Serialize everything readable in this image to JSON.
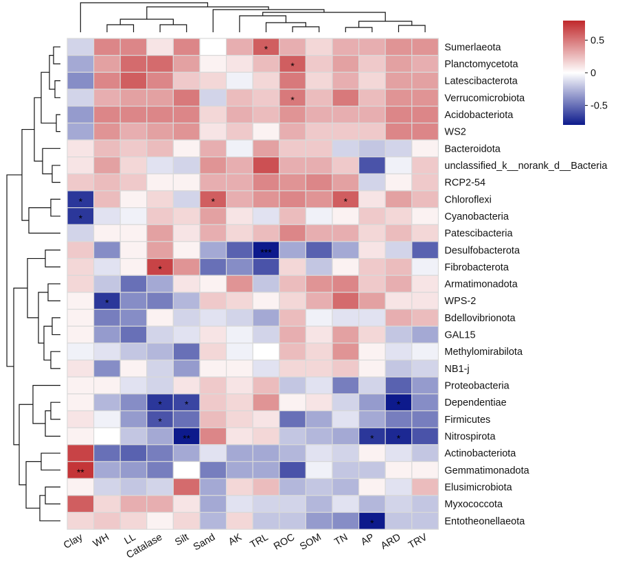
{
  "chart_data": {
    "type": "heatmap",
    "title": "",
    "columns": [
      "Clay",
      "WH",
      "LL",
      "Catalase",
      "Silt",
      "Sand",
      "AK",
      "TRL",
      "ROC",
      "SOM",
      "TN",
      "AP",
      "ARD",
      "TRV"
    ],
    "rows": [
      "Sumerlaeota",
      "Planctomycetota",
      "Latescibacterota",
      "Verrucomicrobiota",
      "Acidobacteriota",
      "WS2",
      "Bacteroidota",
      "unclassified_k__norank_d__Bacteria",
      "RCP2-54",
      "Chloroflexi",
      "Cyanobacteria",
      "Patescibacteria",
      "Desulfobacterota",
      "Fibrobacterota",
      "Armatimonadota",
      "WPS-2",
      "Bdellovibrionota",
      "GAL15",
      "Methylomirabilota",
      "NB1-j",
      "Proteobacteria",
      "Dependentiae",
      "Firmicutes",
      "Nitrospirota",
      "Actinobacteriota",
      "Gemmatimonadota",
      "Elusimicrobiota",
      "Myxococcota",
      "Entotheonellaeota"
    ],
    "values": [
      [
        -0.15,
        0.45,
        0.45,
        0.1,
        0.45,
        0.0,
        0.3,
        0.6,
        0.3,
        0.15,
        0.3,
        0.3,
        0.4,
        0.4
      ],
      [
        -0.3,
        0.35,
        0.55,
        0.55,
        0.35,
        0.05,
        0.1,
        0.25,
        0.6,
        0.2,
        0.35,
        0.2,
        0.35,
        0.3
      ],
      [
        -0.4,
        0.45,
        0.6,
        0.45,
        0.2,
        0.15,
        -0.05,
        0.15,
        0.5,
        0.15,
        0.3,
        0.15,
        0.35,
        0.35
      ],
      [
        -0.15,
        0.3,
        0.35,
        0.35,
        0.5,
        -0.15,
        0.25,
        0.2,
        0.5,
        0.25,
        0.5,
        0.25,
        0.4,
        0.4
      ],
      [
        -0.35,
        0.45,
        0.45,
        0.45,
        0.45,
        0.15,
        0.3,
        0.25,
        0.4,
        0.3,
        0.3,
        0.3,
        0.45,
        0.45
      ],
      [
        -0.3,
        0.4,
        0.3,
        0.35,
        0.4,
        0.1,
        0.2,
        0.05,
        0.3,
        0.2,
        0.2,
        0.2,
        0.45,
        0.45
      ],
      [
        0.1,
        0.25,
        0.2,
        0.25,
        0.05,
        0.3,
        -0.05,
        0.35,
        0.2,
        0.2,
        -0.15,
        -0.2,
        -0.15,
        0.05
      ],
      [
        0.1,
        0.35,
        0.15,
        -0.1,
        -0.15,
        0.4,
        0.3,
        0.65,
        0.3,
        0.3,
        0.2,
        -0.6,
        -0.05,
        0.2
      ],
      [
        0.2,
        0.25,
        0.2,
        0.05,
        0.05,
        0.3,
        0.3,
        0.45,
        0.4,
        0.45,
        0.35,
        -0.15,
        0.05,
        0.2
      ],
      [
        -0.7,
        0.25,
        0.05,
        0.15,
        -0.15,
        0.6,
        0.3,
        0.4,
        0.45,
        0.4,
        0.6,
        0.1,
        0.35,
        0.25
      ],
      [
        -0.7,
        -0.1,
        -0.05,
        0.2,
        0.15,
        0.35,
        0.1,
        -0.1,
        0.25,
        -0.05,
        0.05,
        0.2,
        0.15,
        0.05
      ],
      [
        -0.15,
        0.05,
        0.05,
        0.35,
        0.1,
        0.3,
        0.15,
        0.25,
        0.45,
        0.3,
        0.3,
        0.15,
        0.25,
        0.15
      ],
      [
        0.2,
        -0.4,
        0.05,
        0.35,
        0.05,
        -0.3,
        -0.55,
        -0.85,
        -0.3,
        -0.55,
        -0.3,
        0.1,
        -0.15,
        -0.55
      ],
      [
        0.15,
        -0.1,
        0.05,
        0.7,
        0.4,
        -0.5,
        -0.4,
        -0.6,
        0.15,
        -0.2,
        0.05,
        0.2,
        0.25,
        -0.05
      ],
      [
        0.15,
        -0.2,
        -0.5,
        -0.3,
        0.1,
        0.05,
        0.4,
        -0.2,
        0.25,
        0.4,
        0.45,
        0.2,
        0.3,
        0.1
      ],
      [
        0.05,
        -0.7,
        -0.4,
        -0.45,
        -0.25,
        0.2,
        0.15,
        0.05,
        0.15,
        0.3,
        0.55,
        0.35,
        0.1,
        0.1
      ],
      [
        0.05,
        -0.45,
        -0.4,
        0.05,
        -0.15,
        -0.1,
        -0.15,
        -0.3,
        0.25,
        -0.05,
        -0.1,
        -0.1,
        0.3,
        0.25
      ],
      [
        0.05,
        -0.35,
        -0.5,
        -0.15,
        -0.1,
        0.1,
        -0.05,
        -0.15,
        0.3,
        0.1,
        0.35,
        0.15,
        -0.2,
        -0.3
      ],
      [
        -0.05,
        -0.1,
        -0.2,
        -0.25,
        -0.5,
        0.15,
        -0.05,
        0.0,
        0.25,
        0.15,
        0.4,
        0.05,
        -0.1,
        -0.05
      ],
      [
        0.1,
        -0.4,
        0.05,
        -0.15,
        -0.35,
        0.05,
        0.05,
        -0.1,
        0.15,
        0.15,
        0.2,
        0.05,
        -0.2,
        -0.15
      ],
      [
        0.05,
        0.05,
        -0.1,
        -0.15,
        0.1,
        0.2,
        0.1,
        0.25,
        -0.2,
        -0.1,
        -0.45,
        -0.15,
        -0.55,
        -0.35
      ],
      [
        0.05,
        -0.25,
        -0.4,
        -0.7,
        -0.65,
        0.2,
        0.15,
        0.4,
        0.05,
        0.1,
        -0.15,
        -0.35,
        -0.8,
        -0.4
      ],
      [
        0.1,
        -0.05,
        -0.35,
        -0.6,
        -0.5,
        0.25,
        0.15,
        0.1,
        -0.5,
        -0.3,
        -0.1,
        -0.3,
        -0.45,
        -0.45
      ],
      [
        0.05,
        0.0,
        -0.2,
        -0.3,
        -0.85,
        0.45,
        0.1,
        0.15,
        -0.2,
        -0.25,
        -0.3,
        -0.7,
        -0.75,
        -0.6
      ],
      [
        0.7,
        -0.5,
        -0.55,
        -0.45,
        -0.3,
        -0.1,
        -0.3,
        -0.3,
        -0.25,
        -0.1,
        -0.15,
        0.05,
        -0.1,
        -0.2
      ],
      [
        0.75,
        -0.3,
        -0.35,
        -0.45,
        0.0,
        -0.45,
        -0.3,
        -0.3,
        -0.6,
        -0.05,
        -0.2,
        -0.2,
        0.05,
        0.05
      ],
      [
        0.05,
        -0.15,
        -0.2,
        -0.15,
        0.55,
        -0.3,
        0.15,
        0.25,
        -0.25,
        -0.2,
        -0.25,
        0.05,
        -0.1,
        0.25
      ],
      [
        0.6,
        0.15,
        0.3,
        0.3,
        0.1,
        -0.3,
        -0.1,
        -0.15,
        -0.15,
        -0.25,
        -0.1,
        -0.25,
        -0.15,
        -0.2
      ],
      [
        0.15,
        0.2,
        0.15,
        0.05,
        0.15,
        -0.25,
        0.15,
        -0.2,
        -0.2,
        -0.35,
        -0.4,
        -0.8,
        -0.2,
        -0.2
      ]
    ],
    "significance": [
      [
        "",
        "",
        "",
        "",
        "",
        "",
        "",
        "*",
        "",
        "",
        "",
        "",
        "",
        ""
      ],
      [
        "",
        "",
        "",
        "",
        "",
        "",
        "",
        "",
        "*",
        "",
        "",
        "",
        "",
        ""
      ],
      [
        "",
        "",
        "",
        "",
        "",
        "",
        "",
        "",
        "",
        "",
        "",
        "",
        "",
        ""
      ],
      [
        "",
        "",
        "",
        "",
        "",
        "",
        "",
        "",
        "*",
        "",
        "",
        "",
        "",
        ""
      ],
      [
        "",
        "",
        "",
        "",
        "",
        "",
        "",
        "",
        "",
        "",
        "",
        "",
        "",
        ""
      ],
      [
        "",
        "",
        "",
        "",
        "",
        "",
        "",
        "",
        "",
        "",
        "",
        "",
        "",
        ""
      ],
      [
        "",
        "",
        "",
        "",
        "",
        "",
        "",
        "",
        "",
        "",
        "",
        "",
        "",
        ""
      ],
      [
        "",
        "",
        "",
        "",
        "",
        "",
        "",
        "",
        "",
        "",
        "",
        "",
        "",
        ""
      ],
      [
        "",
        "",
        "",
        "",
        "",
        "",
        "",
        "",
        "",
        "",
        "",
        "",
        "",
        ""
      ],
      [
        "*",
        "",
        "",
        "",
        "",
        "*",
        "",
        "",
        "",
        "",
        "*",
        "",
        "",
        ""
      ],
      [
        "*",
        "",
        "",
        "",
        "",
        "",
        "",
        "",
        "",
        "",
        "",
        "",
        "",
        ""
      ],
      [
        "",
        "",
        "",
        "",
        "",
        "",
        "",
        "",
        "",
        "",
        "",
        "",
        "",
        ""
      ],
      [
        "",
        "",
        "",
        "",
        "",
        "",
        "",
        "***",
        "",
        "",
        "",
        "",
        "",
        ""
      ],
      [
        "",
        "",
        "",
        "*",
        "",
        "",
        "",
        "",
        "",
        "",
        "",
        "",
        "",
        ""
      ],
      [
        "",
        "",
        "",
        "",
        "",
        "",
        "",
        "",
        "",
        "",
        "",
        "",
        "",
        ""
      ],
      [
        "",
        "*",
        "",
        "",
        "",
        "",
        "",
        "",
        "",
        "",
        "",
        "",
        "",
        ""
      ],
      [
        "",
        "",
        "",
        "",
        "",
        "",
        "",
        "",
        "",
        "",
        "",
        "",
        "",
        ""
      ],
      [
        "",
        "",
        "",
        "",
        "",
        "",
        "",
        "",
        "",
        "",
        "",
        "",
        "",
        ""
      ],
      [
        "",
        "",
        "",
        "",
        "",
        "",
        "",
        "",
        "",
        "",
        "",
        "",
        "",
        ""
      ],
      [
        "",
        "",
        "",
        "",
        "",
        "",
        "",
        "",
        "",
        "",
        "",
        "",
        "",
        ""
      ],
      [
        "",
        "",
        "",
        "",
        "",
        "",
        "",
        "",
        "",
        "",
        "",
        "",
        "",
        ""
      ],
      [
        "",
        "",
        "",
        "*",
        "*",
        "",
        "",
        "",
        "",
        "",
        "",
        "",
        "*",
        ""
      ],
      [
        "",
        "",
        "",
        "*",
        "",
        "",
        "",
        "",
        "",
        "",
        "",
        "",
        "",
        ""
      ],
      [
        "",
        "",
        "",
        "",
        "**",
        "",
        "",
        "",
        "",
        "",
        "",
        "*",
        "*",
        ""
      ],
      [
        "",
        "",
        "",
        "",
        "",
        "",
        "",
        "",
        "",
        "",
        "",
        "",
        "",
        ""
      ],
      [
        "**",
        "",
        "",
        "",
        "",
        "",
        "",
        "",
        "",
        "",
        "",
        "",
        "",
        ""
      ],
      [
        "",
        "",
        "",
        "",
        "",
        "",
        "",
        "",
        "",
        "",
        "",
        "",
        "",
        ""
      ],
      [
        "",
        "",
        "",
        "",
        "",
        "",
        "",
        "",
        "",
        "",
        "",
        "",
        "",
        ""
      ],
      [
        "",
        "",
        "",
        "",
        "",
        "",
        "",
        "",
        "",
        "",
        "",
        "*",
        "",
        ""
      ]
    ],
    "color_scale": {
      "min": -0.8,
      "mid": 0,
      "max": 0.8,
      "low_color": "#0d1a8c",
      "mid_color": "#ffffff",
      "high_color": "#c0282b"
    },
    "legend": {
      "ticks": [
        0.5,
        0,
        -0.5
      ],
      "tick_labels": [
        "0.5",
        "0",
        "-0.5"
      ],
      "placement": "top-right"
    }
  }
}
